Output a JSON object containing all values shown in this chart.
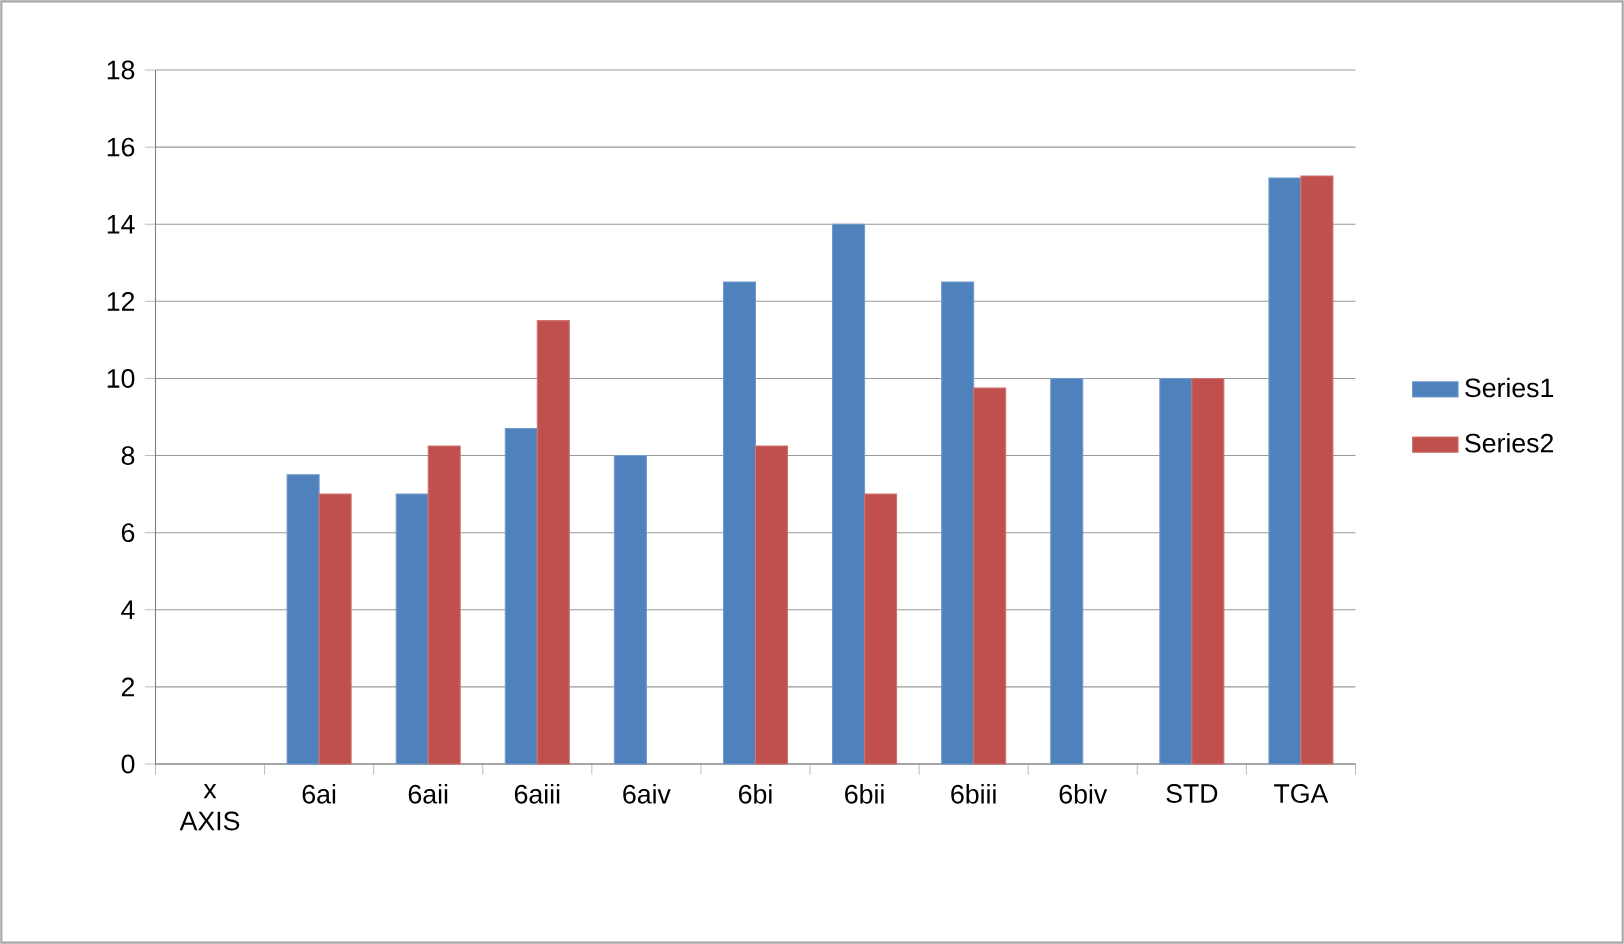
{
  "chart_data": {
    "type": "bar",
    "categories": [
      "x AXIS",
      "6ai",
      "6aii",
      "6aiii",
      "6aiv",
      "6bi",
      "6bii",
      "6biii",
      "6biv",
      "STD",
      "TGA"
    ],
    "series": [
      {
        "name": "Series1",
        "color": "#4f81bd",
        "values": [
          null,
          7.5,
          7,
          8.7,
          8,
          12.5,
          14,
          12.5,
          10,
          10,
          15.2
        ]
      },
      {
        "name": "Series2",
        "color": "#c0504d",
        "values": [
          null,
          7,
          8.25,
          11.5,
          null,
          8.25,
          7,
          9.75,
          null,
          10,
          15.25
        ]
      }
    ],
    "ylim": [
      0,
      18
    ],
    "yticks": [
      0,
      2,
      4,
      6,
      8,
      10,
      12,
      14,
      16,
      18
    ],
    "grid": "y",
    "legend": "right"
  }
}
